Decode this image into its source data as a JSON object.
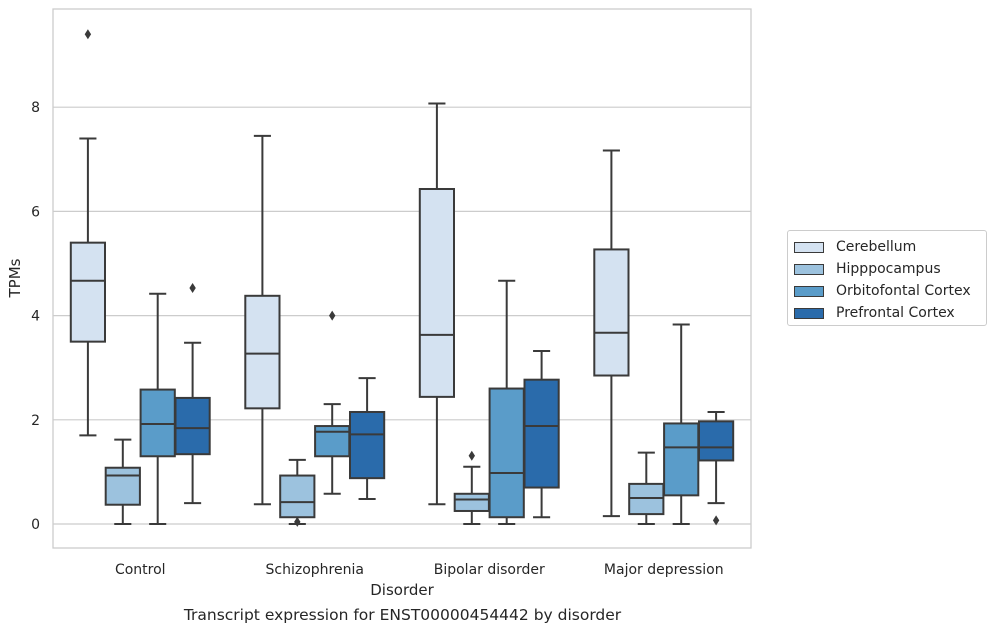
{
  "chart_data": {
    "type": "box",
    "caption": "Transcript expression for ENST00000454442 by disorder",
    "xlabel": "Disorder",
    "ylabel": "TPMs",
    "ylim": [
      -0.45,
      9.9
    ],
    "yticks": [
      "0",
      "2",
      "4",
      "6",
      "8"
    ],
    "grid": "horizontal",
    "legend_placement": "right",
    "categories": [
      "Control",
      "Schizophrenia",
      "Bipolar disorder",
      "Major depression"
    ],
    "series": [
      {
        "name": "Cerebellum",
        "color": "#d4e2f1",
        "boxes": [
          {
            "whisker_low": 1.7,
            "q1": 3.5,
            "median": 4.67,
            "q3": 5.4,
            "whisker_high": 7.4,
            "outliers": [
              9.4
            ]
          },
          {
            "whisker_low": 0.38,
            "q1": 2.22,
            "median": 3.27,
            "q3": 4.38,
            "whisker_high": 7.45,
            "outliers": []
          },
          {
            "whisker_low": 0.38,
            "q1": 2.44,
            "median": 3.63,
            "q3": 6.43,
            "whisker_high": 8.07,
            "outliers": []
          },
          {
            "whisker_low": 0.15,
            "q1": 2.85,
            "median": 3.67,
            "q3": 5.27,
            "whisker_high": 7.17,
            "outliers": []
          }
        ]
      },
      {
        "name": "Hipppocampus",
        "color": "#9cc2de",
        "boxes": [
          {
            "whisker_low": 0.0,
            "q1": 0.37,
            "median": 0.93,
            "q3": 1.08,
            "whisker_high": 1.62,
            "outliers": []
          },
          {
            "whisker_low": 0.0,
            "q1": 0.13,
            "median": 0.42,
            "q3": 0.93,
            "whisker_high": 1.23,
            "outliers": [
              0.04
            ]
          },
          {
            "whisker_low": 0.0,
            "q1": 0.25,
            "median": 0.47,
            "q3": 0.58,
            "whisker_high": 1.1,
            "outliers": [
              1.31
            ]
          },
          {
            "whisker_low": 0.0,
            "q1": 0.19,
            "median": 0.5,
            "q3": 0.77,
            "whisker_high": 1.37,
            "outliers": []
          }
        ]
      },
      {
        "name": "Orbitofontal Cortex",
        "color": "#5a9cc9",
        "boxes": [
          {
            "whisker_low": 0.0,
            "q1": 1.3,
            "median": 1.92,
            "q3": 2.58,
            "whisker_high": 4.42,
            "outliers": []
          },
          {
            "whisker_low": 0.58,
            "q1": 1.3,
            "median": 1.77,
            "q3": 1.88,
            "whisker_high": 2.3,
            "outliers": [
              4.0
            ]
          },
          {
            "whisker_low": 0.0,
            "q1": 0.13,
            "median": 0.98,
            "q3": 2.6,
            "whisker_high": 4.67,
            "outliers": []
          },
          {
            "whisker_low": 0.0,
            "q1": 0.55,
            "median": 1.47,
            "q3": 1.93,
            "whisker_high": 3.83,
            "outliers": []
          }
        ]
      },
      {
        "name": "Prefrontal Cortex",
        "color": "#2a6bab",
        "boxes": [
          {
            "whisker_low": 0.4,
            "q1": 1.34,
            "median": 1.84,
            "q3": 2.42,
            "whisker_high": 3.48,
            "outliers": [
              4.53
            ]
          },
          {
            "whisker_low": 0.48,
            "q1": 0.88,
            "median": 1.72,
            "q3": 2.15,
            "whisker_high": 2.8,
            "outliers": []
          },
          {
            "whisker_low": 0.13,
            "q1": 0.7,
            "median": 1.88,
            "q3": 2.77,
            "whisker_high": 3.32,
            "outliers": []
          },
          {
            "whisker_low": 0.4,
            "q1": 1.22,
            "median": 1.47,
            "q3": 1.97,
            "whisker_high": 2.15,
            "outliers": [
              0.07
            ]
          }
        ]
      }
    ]
  }
}
